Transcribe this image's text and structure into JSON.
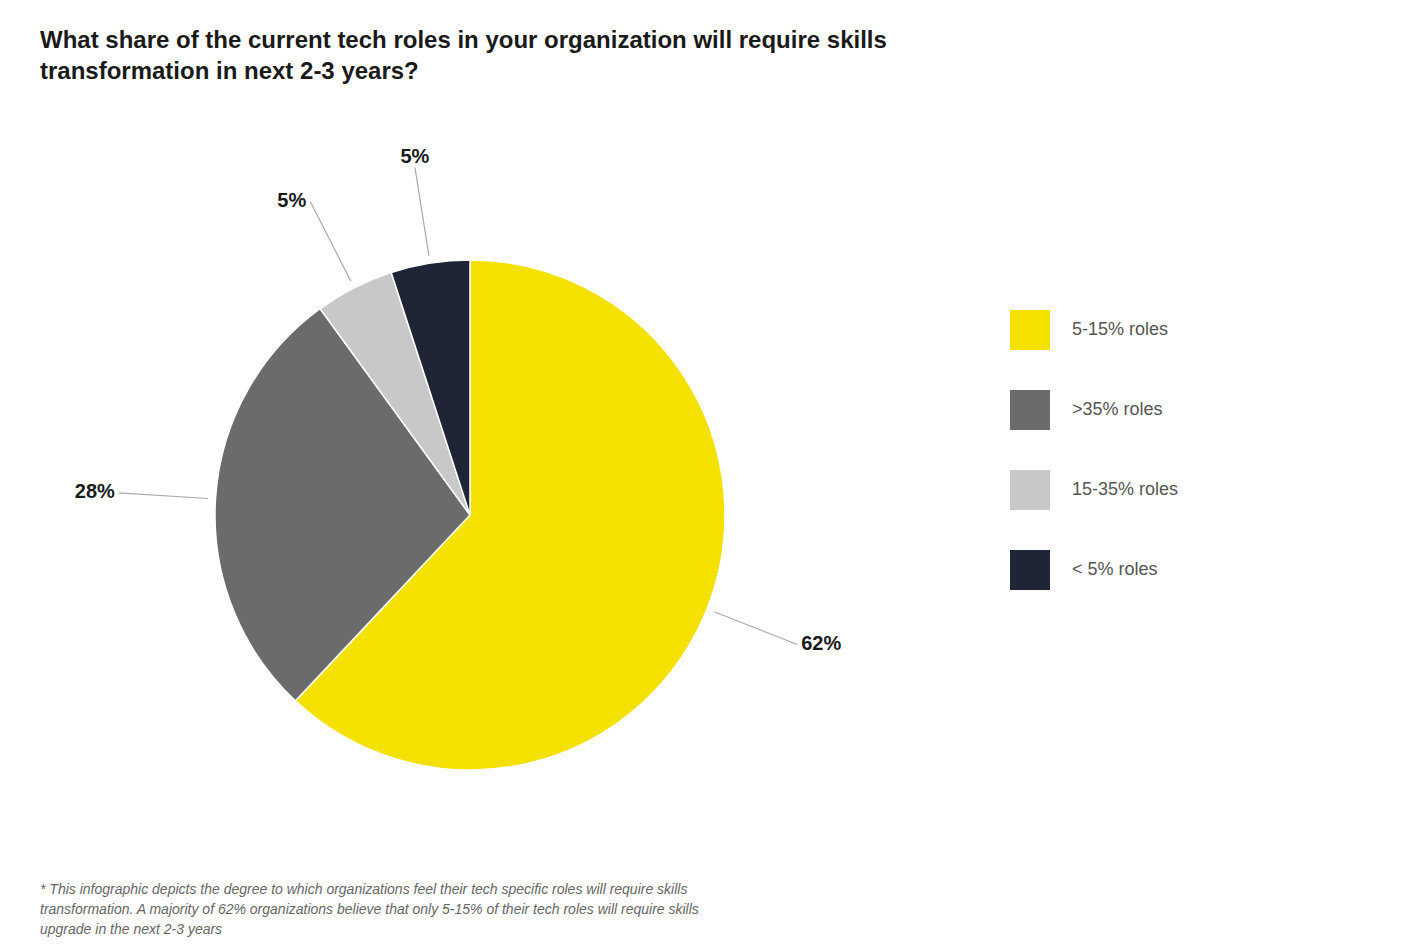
{
  "chart_data": {
    "type": "pie",
    "title": "What share of the current tech roles in your organization will require skills\ntransformation in next 2-3 years?",
    "categories": [
      "5-15% roles",
      ">35% roles",
      "15-35% roles",
      "< 5% roles"
    ],
    "values": [
      62,
      28,
      5,
      5
    ],
    "value_labels": [
      "62%",
      "28%",
      "5%",
      "5%"
    ],
    "data_labels": true,
    "colors": [
      "#F5E100",
      "#6B6B6B",
      "#C8C8C8",
      "#1F2535"
    ],
    "legend": "right",
    "annotations": [
      "* This infographic depicts the degree to which organizations feel their tech specific roles will require skills\ntransformation. A majority of 62% organizations believe that only 5-15% of their tech roles will require skills\nupgrade in the next 2-3 years"
    ]
  }
}
